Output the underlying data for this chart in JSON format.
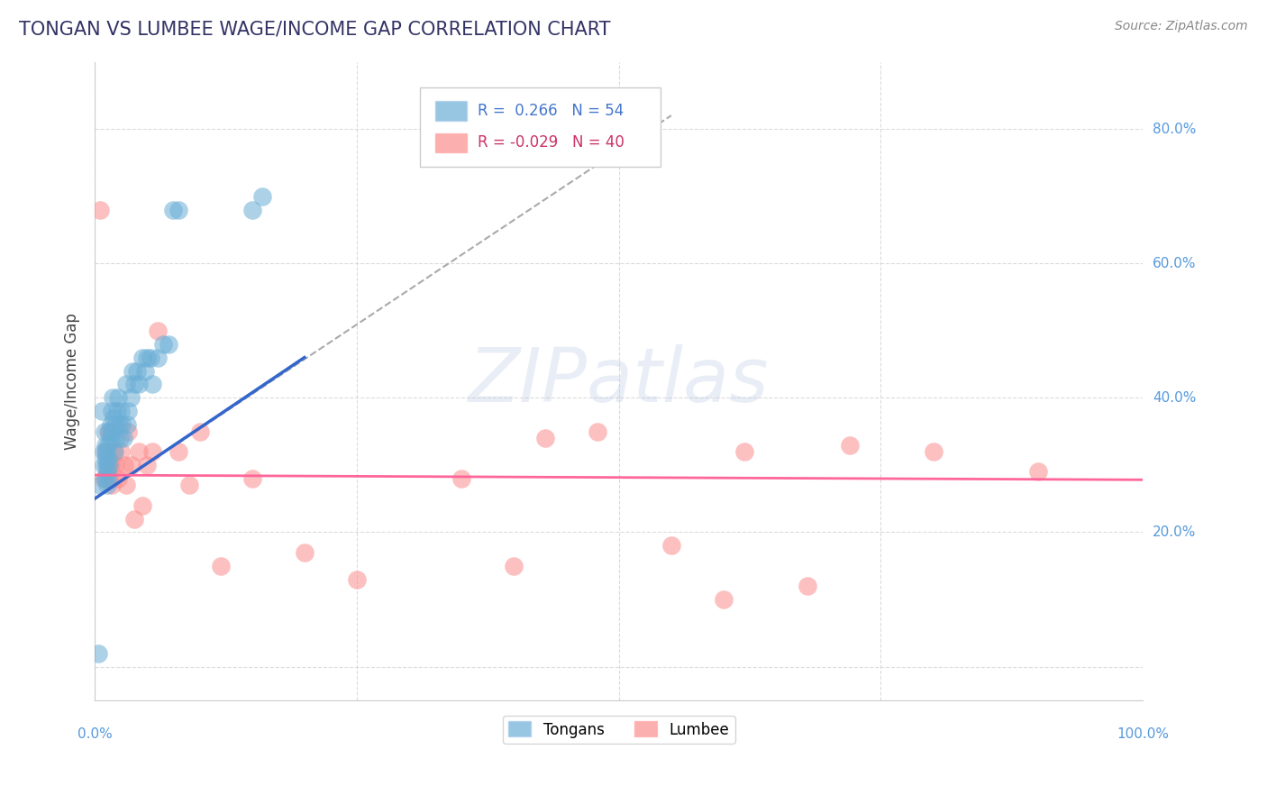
{
  "title": "TONGAN VS LUMBEE WAGE/INCOME GAP CORRELATION CHART",
  "source": "Source: ZipAtlas.com",
  "ylabel": "Wage/Income Gap",
  "tongan_R": 0.266,
  "tongan_N": 54,
  "lumbee_R": -0.029,
  "lumbee_N": 40,
  "xlim": [
    0.0,
    1.0
  ],
  "ylim": [
    -0.05,
    0.9
  ],
  "yticks": [
    0.0,
    0.2,
    0.4,
    0.6,
    0.8
  ],
  "ytick_labels": [
    "",
    "20.0%",
    "40.0%",
    "60.0%",
    "80.0%"
  ],
  "background_color": "#ffffff",
  "grid_color": "#cccccc",
  "tongan_color": "#6baed6",
  "lumbee_color": "#fc8d8d",
  "blue_line_color": "#3366cc",
  "pink_line_color": "#ff6699",
  "dashed_line_color": "#aaaaaa",
  "title_color": "#333366",
  "source_color": "#888888",
  "tongan_points_x": [
    0.003,
    0.005,
    0.007,
    0.008,
    0.008,
    0.009,
    0.01,
    0.01,
    0.01,
    0.011,
    0.011,
    0.012,
    0.012,
    0.013,
    0.013,
    0.013,
    0.014,
    0.014,
    0.015,
    0.015,
    0.016,
    0.016,
    0.017,
    0.018,
    0.019,
    0.02,
    0.02,
    0.021,
    0.022,
    0.023,
    0.024,
    0.025,
    0.026,
    0.027,
    0.03,
    0.031,
    0.032,
    0.034,
    0.036,
    0.038,
    0.04,
    0.042,
    0.045,
    0.048,
    0.05,
    0.053,
    0.055,
    0.06,
    0.065,
    0.07,
    0.075,
    0.08,
    0.15,
    0.16
  ],
  "tongan_points_y": [
    0.02,
    0.27,
    0.38,
    0.32,
    0.3,
    0.35,
    0.28,
    0.31,
    0.33,
    0.3,
    0.32,
    0.27,
    0.29,
    0.33,
    0.31,
    0.28,
    0.35,
    0.3,
    0.34,
    0.36,
    0.38,
    0.35,
    0.4,
    0.37,
    0.32,
    0.36,
    0.34,
    0.38,
    0.4,
    0.36,
    0.34,
    0.38,
    0.36,
    0.34,
    0.42,
    0.36,
    0.38,
    0.4,
    0.44,
    0.42,
    0.44,
    0.42,
    0.46,
    0.44,
    0.46,
    0.46,
    0.42,
    0.46,
    0.48,
    0.48,
    0.68,
    0.68,
    0.68,
    0.7
  ],
  "lumbee_points_x": [
    0.005,
    0.008,
    0.01,
    0.012,
    0.013,
    0.015,
    0.015,
    0.016,
    0.018,
    0.02,
    0.022,
    0.025,
    0.028,
    0.03,
    0.032,
    0.035,
    0.038,
    0.042,
    0.045,
    0.05,
    0.055,
    0.06,
    0.08,
    0.09,
    0.1,
    0.12,
    0.15,
    0.2,
    0.25,
    0.35,
    0.4,
    0.43,
    0.48,
    0.55,
    0.6,
    0.62,
    0.68,
    0.72,
    0.8,
    0.9
  ],
  "lumbee_points_y": [
    0.68,
    0.28,
    0.32,
    0.3,
    0.35,
    0.28,
    0.3,
    0.27,
    0.32,
    0.3,
    0.28,
    0.32,
    0.3,
    0.27,
    0.35,
    0.3,
    0.22,
    0.32,
    0.24,
    0.3,
    0.32,
    0.5,
    0.32,
    0.27,
    0.35,
    0.15,
    0.28,
    0.17,
    0.13,
    0.28,
    0.15,
    0.34,
    0.35,
    0.18,
    0.1,
    0.32,
    0.12,
    0.33,
    0.32,
    0.29
  ],
  "blue_line_x": [
    0.0,
    0.2
  ],
  "blue_line_y": [
    0.25,
    0.46
  ],
  "dash_line_x": [
    0.0,
    0.55
  ],
  "dash_line_y": [
    0.25,
    0.82
  ],
  "pink_line_x": [
    0.0,
    1.0
  ],
  "pink_line_y": [
    0.285,
    0.278
  ]
}
